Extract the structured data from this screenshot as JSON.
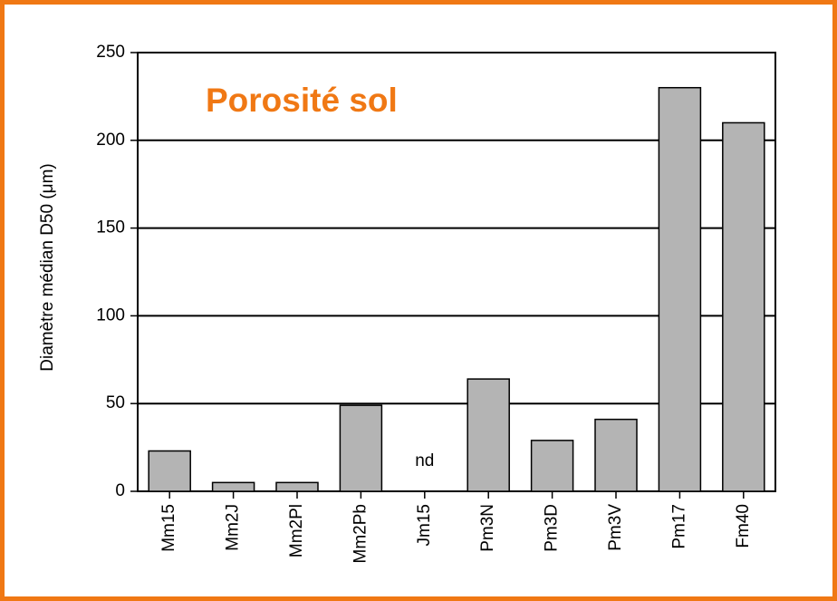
{
  "chart_data": {
    "type": "bar",
    "title": "Porosité sol",
    "y_label": "Diamètre médian D50 (μm)",
    "categories": [
      "Mm15",
      "Mm2J",
      "Mm2Pl",
      "Mm2Pb",
      "Jm15",
      "Pm3N",
      "Pm3D",
      "Pm3V",
      "Pm17",
      "Fm40"
    ],
    "values": [
      23,
      5,
      5,
      49,
      null,
      64,
      29,
      41,
      230,
      210
    ],
    "color": "#b4b4b4",
    "ylim": [
      0,
      250
    ],
    "yticks": [
      0,
      50,
      100,
      150,
      200,
      250
    ],
    "grid": true,
    "annotations": [
      {
        "text": "nd",
        "category": "Jm15"
      }
    ]
  }
}
